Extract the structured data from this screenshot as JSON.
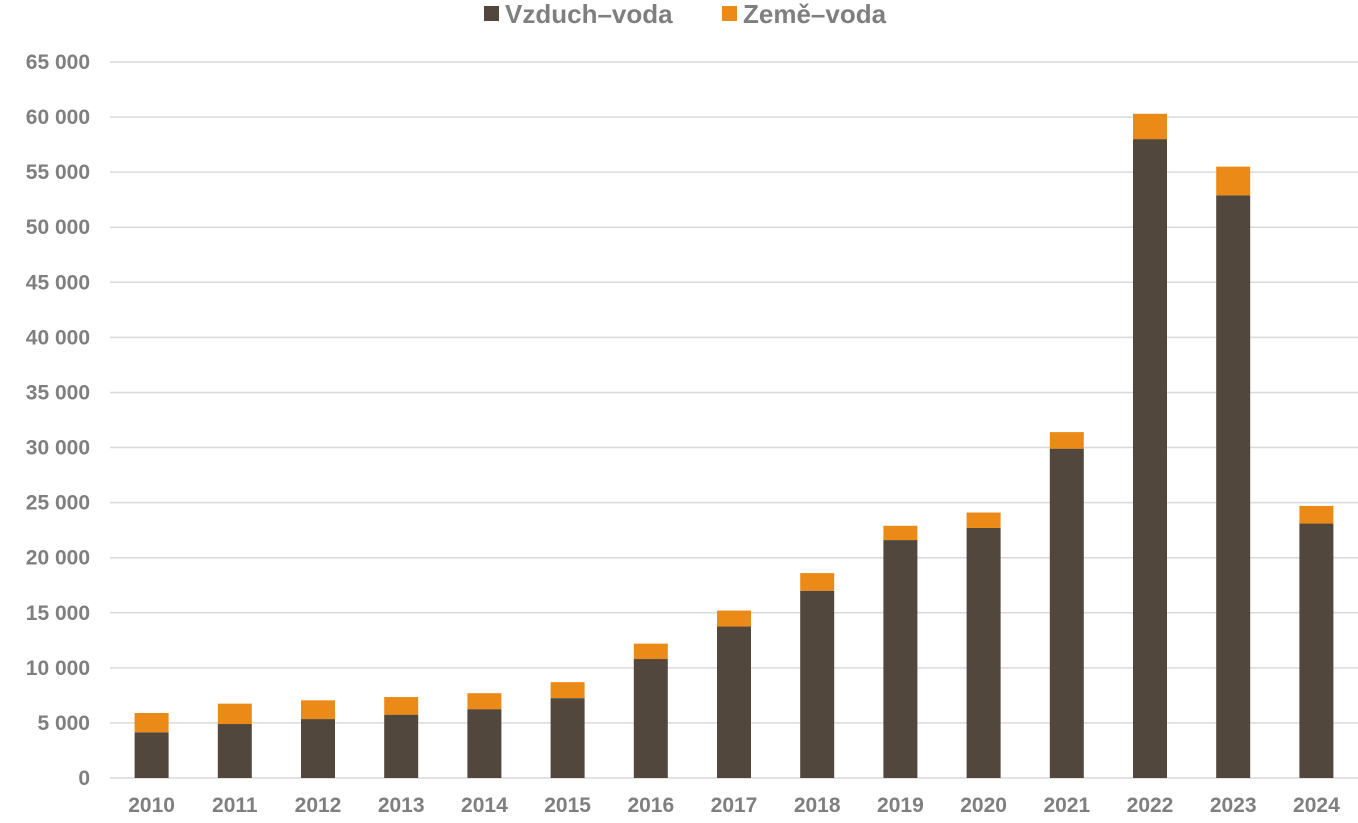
{
  "chart_data": {
    "type": "bar",
    "stacked": true,
    "categories": [
      "2010",
      "2011",
      "2012",
      "2013",
      "2014",
      "2015",
      "2016",
      "2017",
      "2018",
      "2019",
      "2020",
      "2021",
      "2022",
      "2023",
      "2024"
    ],
    "series": [
      {
        "name": "Vzduch–voda",
        "color": "#52473c",
        "values": [
          4150,
          4900,
          5350,
          5750,
          6250,
          7250,
          10800,
          13750,
          17000,
          21600,
          22700,
          29900,
          58000,
          52900,
          23100
        ]
      },
      {
        "name": "Země–voda",
        "color": "#ec8a17",
        "values": [
          1750,
          1850,
          1700,
          1600,
          1450,
          1450,
          1400,
          1450,
          1600,
          1300,
          1400,
          1500,
          2300,
          2600,
          1600
        ]
      }
    ],
    "ylim": [
      0,
      65000
    ],
    "yticks": [
      0,
      5000,
      10000,
      15000,
      20000,
      25000,
      30000,
      35000,
      40000,
      45000,
      50000,
      55000,
      60000,
      65000
    ],
    "ytick_labels": [
      "0",
      "5 000",
      "10 000",
      "15 000",
      "20 000",
      "25 000",
      "30 000",
      "35 000",
      "40 000",
      "45 000",
      "50 000",
      "55 000",
      "60 000",
      "65 000"
    ],
    "title": "",
    "xlabel": "",
    "ylabel": "",
    "grid": true,
    "legend_position": "top-center"
  },
  "colors": {
    "grid": "#d9d9d9",
    "text": "#7f7f7f",
    "background": "#ffffff"
  }
}
